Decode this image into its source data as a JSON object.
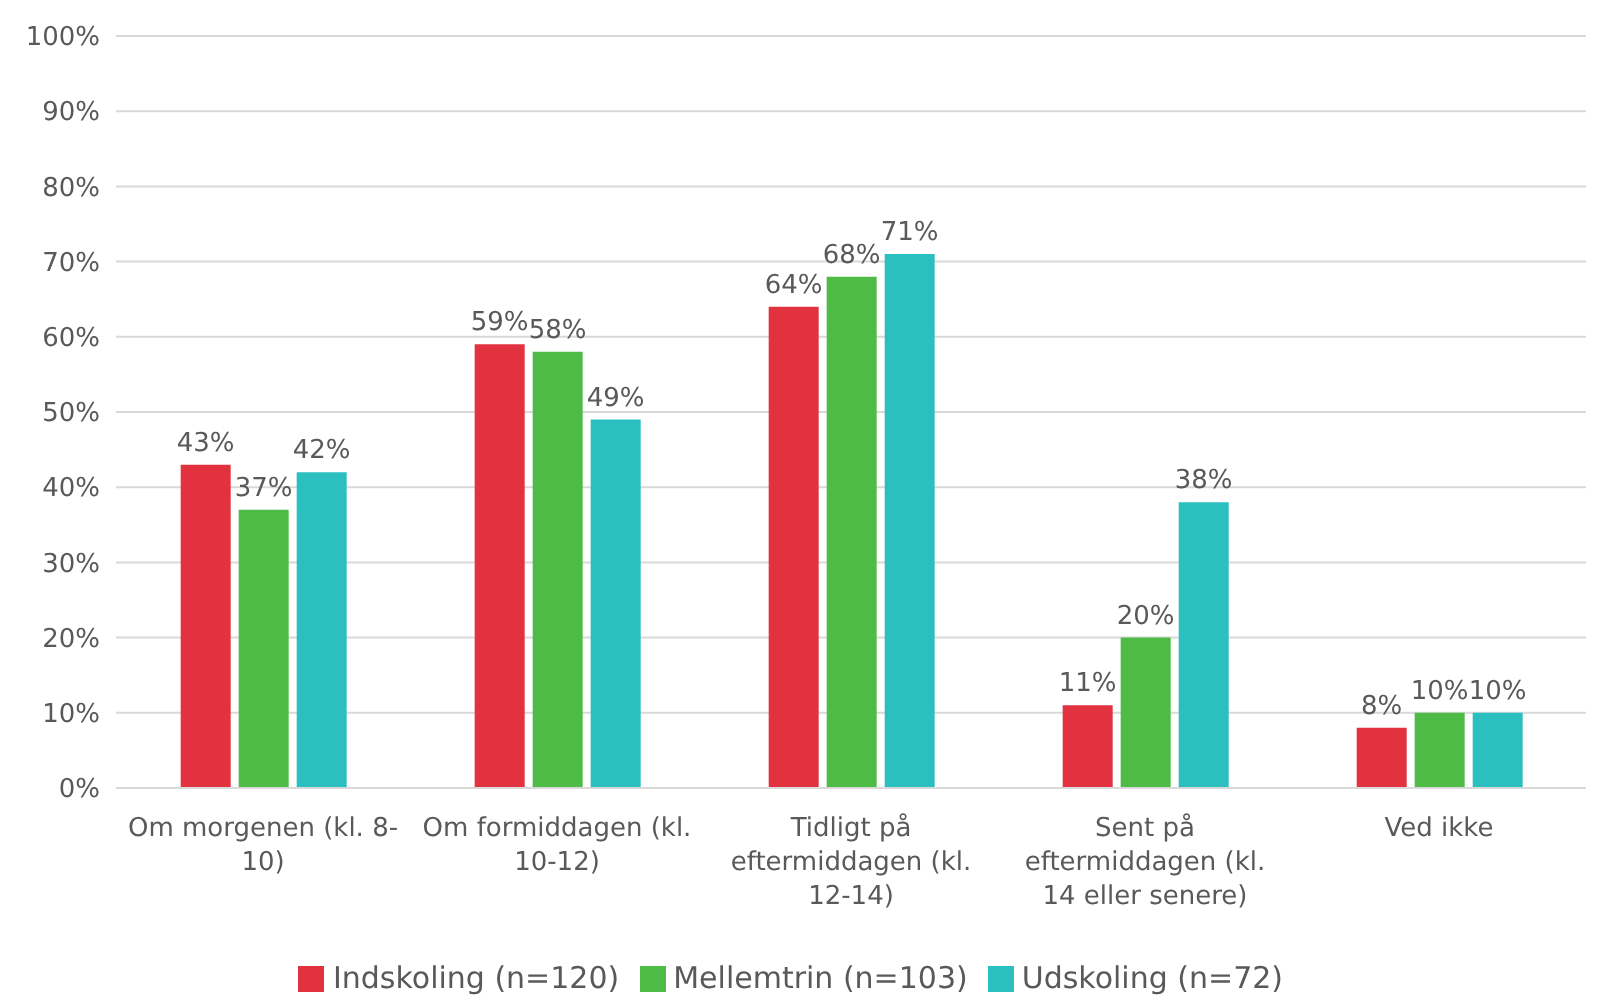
{
  "chart_data": {
    "type": "bar",
    "categories": [
      "Om morgenen (kl. 8-10)",
      "Om formiddagen (kl. 10-12)",
      "Tidligt på eftermiddagen (kl. 12-14)",
      "Sent på eftermiddagen (kl. 14 eller senere)",
      "Ved ikke"
    ],
    "series": [
      {
        "name": "Indskoling (n=120)",
        "color": "#e2323f",
        "values": [
          43,
          59,
          64,
          11,
          8
        ],
        "value_labels": [
          "43%",
          "59%",
          "64%",
          "11%",
          "8%"
        ]
      },
      {
        "name": "Mellemtrin (n=103)",
        "color": "#4fbb47",
        "values": [
          37,
          58,
          68,
          20,
          10
        ],
        "value_labels": [
          "37%",
          "58%",
          "68%",
          "20%",
          "10%"
        ]
      },
      {
        "name": "Udskoling (n=72)",
        "color": "#2bbfbf",
        "values": [
          42,
          49,
          71,
          38,
          10
        ],
        "value_labels": [
          "42%",
          "49%",
          "71%",
          "38%",
          "10%"
        ]
      }
    ],
    "ylim": [
      0,
      100
    ],
    "yticks": [
      {
        "value": 0,
        "label": "0%"
      },
      {
        "value": 10,
        "label": "10%"
      },
      {
        "value": 20,
        "label": "20%"
      },
      {
        "value": 30,
        "label": "30%"
      },
      {
        "value": 40,
        "label": "40%"
      },
      {
        "value": 50,
        "label": "50%"
      },
      {
        "value": 60,
        "label": "60%"
      },
      {
        "value": 70,
        "label": "70%"
      },
      {
        "value": 80,
        "label": "80%"
      },
      {
        "value": 90,
        "label": "90%"
      },
      {
        "value": 100,
        "label": "100%"
      }
    ],
    "grid": "y",
    "legend": "bottom"
  }
}
